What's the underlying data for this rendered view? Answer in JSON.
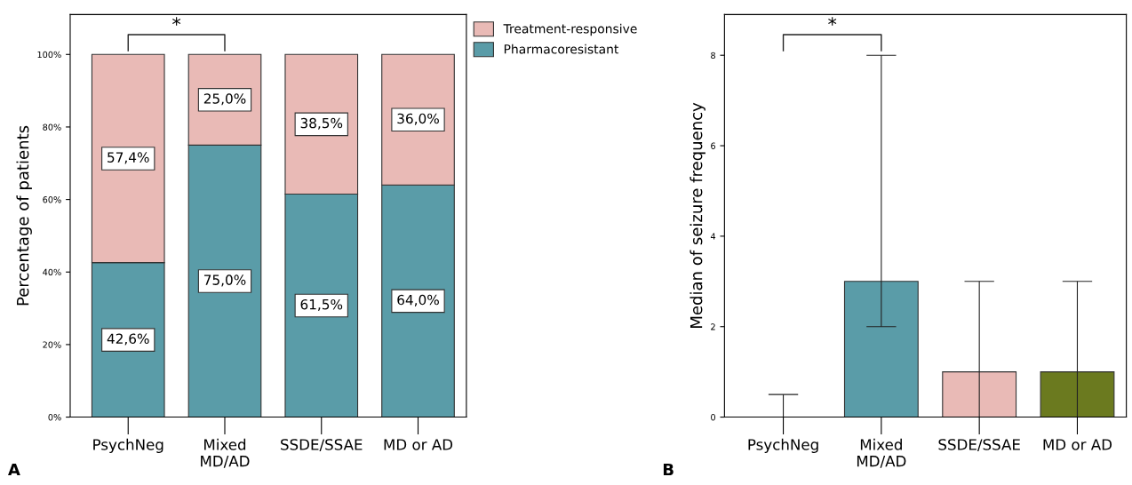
{
  "chart_data": [
    {
      "type": "bar",
      "ylabel": "Percentage of patients",
      "categories": [
        "PsychNeg",
        "Mixed\nMD/AD",
        "SSDE/SSAE",
        "MD or AD"
      ],
      "stacked": true,
      "series": [
        {
          "name": "Pharmacoresistant",
          "color": "#5a9ca8",
          "values": [
            42.6,
            75.0,
            61.5,
            64.0
          ],
          "value_labels": [
            "42,6%",
            "75,0%",
            "61,5%",
            "64,0%"
          ]
        },
        {
          "name": "Treatment-responsive",
          "color": "#e9bab6",
          "values": [
            57.4,
            25.0,
            38.5,
            36.0
          ],
          "value_labels": [
            "57,4%",
            "25,0%",
            "38,5%",
            "36,0%"
          ]
        }
      ],
      "ylim": [
        0,
        111
      ],
      "yticks": [
        {
          "value": 0,
          "label": "0%"
        },
        {
          "value": 20,
          "label": "20%"
        },
        {
          "value": 40,
          "label": "40%"
        },
        {
          "value": 60,
          "label": "60%"
        },
        {
          "value": 80,
          "label": "80%"
        },
        {
          "value": 100,
          "label": "100%"
        }
      ],
      "legend": "top right",
      "grid": false,
      "annotations": [
        "*",
        "A"
      ]
    },
    {
      "type": "bar",
      "ylabel": "Median of seizure frequency",
      "categories": [
        "PsychNeg",
        "Mixed\nMD/AD",
        "SSDE/SSAE",
        "MD or AD"
      ],
      "values": [
        0,
        3,
        1,
        1
      ],
      "colors": [
        "#333333",
        "#5a9ca8",
        "#e9bab6",
        "#6b7a1f"
      ],
      "errors": [
        [
          0,
          0.5
        ],
        [
          2,
          8
        ],
        [
          0,
          3
        ],
        [
          0,
          3
        ]
      ],
      "ylim": [
        0,
        8.9
      ],
      "yticks": [
        0,
        2,
        4,
        6,
        8
      ],
      "grid": false,
      "legend": false,
      "annotations": [
        "*",
        "B"
      ]
    }
  ]
}
